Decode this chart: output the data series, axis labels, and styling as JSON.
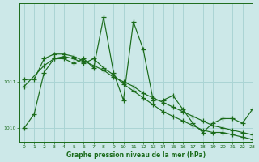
{
  "title": "Graphe pression niveau de la mer (hPa)",
  "bg_color": "#cce8e8",
  "grid_color": "#aad4d4",
  "line_color": "#1a6b1a",
  "xlim": [
    -0.5,
    23
  ],
  "ylim": [
    1009.7,
    1012.7
  ],
  "yticks": [
    1010,
    1011
  ],
  "xticks": [
    0,
    1,
    2,
    3,
    4,
    5,
    6,
    7,
    8,
    9,
    10,
    11,
    12,
    13,
    14,
    15,
    16,
    17,
    18,
    19,
    20,
    21,
    22,
    23
  ],
  "series_spiky": {
    "x": [
      0,
      1,
      2,
      3,
      4,
      5,
      6,
      7,
      8,
      9,
      10,
      11,
      12,
      13,
      14,
      15,
      16,
      17,
      18,
      19,
      20,
      21,
      22,
      23
    ],
    "y": [
      1010.0,
      1010.3,
      1011.2,
      1011.5,
      1011.5,
      1011.4,
      1011.5,
      1011.3,
      1012.4,
      1011.2,
      1010.6,
      1012.3,
      1011.7,
      1010.6,
      1010.6,
      1010.7,
      1010.4,
      1010.1,
      1009.9,
      1010.1,
      1010.2,
      1010.2,
      1010.1,
      1010.4
    ]
  },
  "series_upper": {
    "x": [
      0,
      1,
      2,
      3,
      4,
      5,
      6,
      7,
      8,
      9,
      10,
      11,
      12,
      13,
      14,
      15,
      16,
      17,
      18,
      19,
      20,
      21,
      22,
      23
    ],
    "y": [
      1011.05,
      1011.05,
      1011.5,
      1011.6,
      1011.6,
      1011.55,
      1011.45,
      1011.35,
      1011.25,
      1011.1,
      1011.0,
      1010.9,
      1010.75,
      1010.65,
      1010.55,
      1010.45,
      1010.35,
      1010.25,
      1010.15,
      1010.05,
      1010.0,
      1009.95,
      1009.9,
      1009.85
    ]
  },
  "series_lower": {
    "x": [
      0,
      2,
      3,
      4,
      5,
      6,
      7,
      8,
      9,
      10,
      11,
      12,
      13,
      14,
      15,
      16,
      17,
      18,
      19,
      20,
      21,
      22,
      23
    ],
    "y": [
      1010.9,
      1011.35,
      1011.5,
      1011.55,
      1011.5,
      1011.4,
      1011.5,
      1011.3,
      1011.15,
      1010.95,
      1010.8,
      1010.65,
      1010.5,
      1010.35,
      1010.25,
      1010.15,
      1010.05,
      1009.95,
      1009.9,
      1009.9,
      1009.85,
      1009.8,
      1009.75
    ]
  }
}
